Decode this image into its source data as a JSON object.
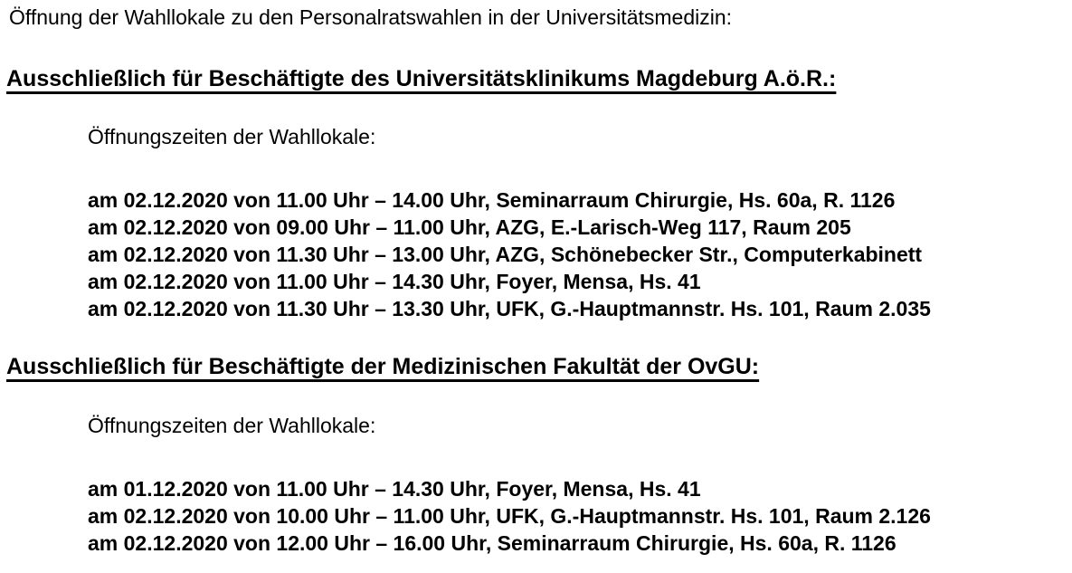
{
  "colors": {
    "text": "#000000",
    "background": "#ffffff"
  },
  "page": {
    "intro": "Öffnung der Wahllokale zu den Personalratswahlen in der Universitätsmedizin:"
  },
  "sections": [
    {
      "heading": "Ausschließlich für Beschäftigte des Universitätsklinikums Magdeburg A.ö.R.:",
      "subheading": "Öffnungszeiten der Wahllokale:",
      "entries": [
        "am 02.12.2020 von 11.00 Uhr – 14.00 Uhr, Seminarraum Chirurgie, Hs. 60a, R. 1126",
        "am 02.12.2020 von 09.00 Uhr – 11.00 Uhr, AZG, E.-Larisch-Weg 117, Raum 205",
        "am 02.12.2020 von 11.30 Uhr – 13.00 Uhr, AZG, Schönebecker Str., Computerkabinett",
        "am 02.12.2020 von 11.00 Uhr – 14.30 Uhr, Foyer, Mensa, Hs. 41",
        "am 02.12.2020 von 11.30 Uhr – 13.30 Uhr, UFK, G.-Hauptmannstr. Hs. 101, Raum 2.035"
      ]
    },
    {
      "heading": "Ausschließlich für Beschäftigte der Medizinischen Fakultät der OvGU:",
      "subheading": "Öffnungszeiten der Wahllokale:",
      "entries": [
        "am 01.12.2020 von 11.00 Uhr – 14.30 Uhr, Foyer, Mensa, Hs. 41",
        "am 02.12.2020 von 10.00 Uhr – 11.00 Uhr, UFK, G.-Hauptmannstr. Hs. 101, Raum 2.126",
        "am 02.12.2020 von 12.00 Uhr – 16.00 Uhr, Seminarraum Chirurgie, Hs. 60a, R. 1126"
      ]
    }
  ]
}
